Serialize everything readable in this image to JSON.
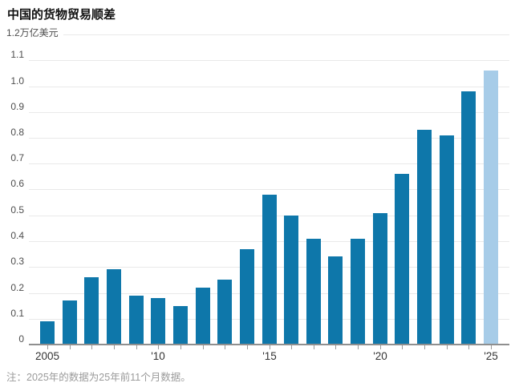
{
  "header": {
    "title": "中国的货物贸易顺差"
  },
  "footnote": "注：2025年的数据为25年前11个月数据。",
  "chart_data": {
    "type": "bar",
    "title": "中国的货物贸易顺差",
    "ylabel": "万亿美元",
    "unit_label": "万亿美元",
    "categories": [
      2005,
      2006,
      2007,
      2008,
      2009,
      2010,
      2011,
      2012,
      2013,
      2014,
      2015,
      2016,
      2017,
      2018,
      2019,
      2020,
      2021,
      2022,
      2023,
      2024,
      2025
    ],
    "values": [
      0.09,
      0.17,
      0.26,
      0.29,
      0.19,
      0.18,
      0.15,
      0.22,
      0.25,
      0.37,
      0.58,
      0.5,
      0.41,
      0.34,
      0.41,
      0.51,
      0.66,
      0.83,
      0.81,
      0.98,
      1.06
    ],
    "highlight_category": 2025,
    "ylim": [
      0,
      1.2
    ],
    "ytick_step": 0.1,
    "ytick_labels": [
      "0",
      "0.1",
      "0.2",
      "0.3",
      "0.4",
      "0.5",
      "0.6",
      "0.7",
      "0.8",
      "0.9",
      "1.0",
      "1.1",
      "1.2"
    ],
    "top_axis_label": "1.2万亿美元",
    "xticks": [
      {
        "index": 0,
        "label": "2005"
      },
      {
        "index": 5,
        "label": "'10"
      },
      {
        "index": 10,
        "label": "'15"
      },
      {
        "index": 15,
        "label": "'20"
      },
      {
        "index": 20,
        "label": "'25"
      }
    ],
    "grid": true,
    "legend": null,
    "colors": {
      "bar": "#0e77aa",
      "highlight_bar": "#a7cce8",
      "gridline": "#e9e9e9",
      "axis_line": "#8f8f8f",
      "tick": "#999999",
      "y_label": "#4d4d4d",
      "x_label": "#333333",
      "title": "#111111",
      "footnote": "#9a9a9a",
      "background": "#ffffff"
    }
  }
}
